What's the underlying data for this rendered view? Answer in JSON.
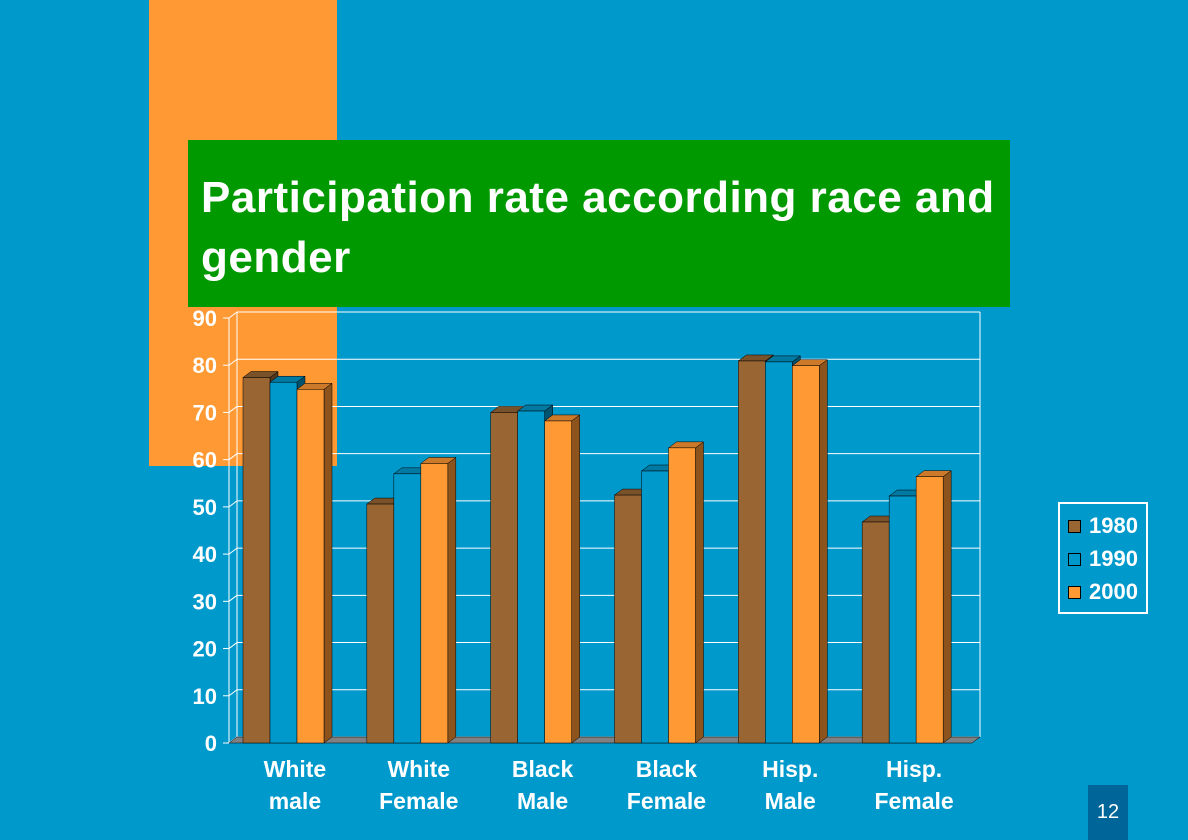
{
  "slide": {
    "page_number": "12"
  },
  "colors": {
    "background": "#0099cc",
    "title_bg": "#009900",
    "accent_block": "#ff9933",
    "page_num_bg": "#006699"
  },
  "chart_data": {
    "type": "bar",
    "title": "Participation rate according race and gender",
    "categories": [
      [
        "White",
        "male"
      ],
      [
        "White",
        "Female"
      ],
      [
        "Black",
        "Male"
      ],
      [
        "Black",
        "Female"
      ],
      [
        "Hisp.",
        "Male"
      ],
      [
        "Hisp.",
        "Female"
      ]
    ],
    "series": [
      {
        "name": "1980",
        "color": "#996633",
        "values": [
          77.4,
          50.6,
          70.0,
          52.5,
          80.9,
          46.8
        ]
      },
      {
        "name": "1990",
        "color": "#0099cc",
        "values": [
          76.4,
          57.0,
          70.3,
          57.6,
          80.7,
          52.3
        ]
      },
      {
        "name": "2000",
        "color": "#ff9933",
        "values": [
          74.9,
          59.2,
          68.2,
          62.5,
          79.9,
          56.4
        ]
      }
    ],
    "ylim": [
      0,
      90
    ],
    "yticks": [
      "0",
      "10",
      "20",
      "30",
      "40",
      "50",
      "60",
      "70",
      "80",
      "90"
    ],
    "grid": true,
    "legend": "right"
  }
}
